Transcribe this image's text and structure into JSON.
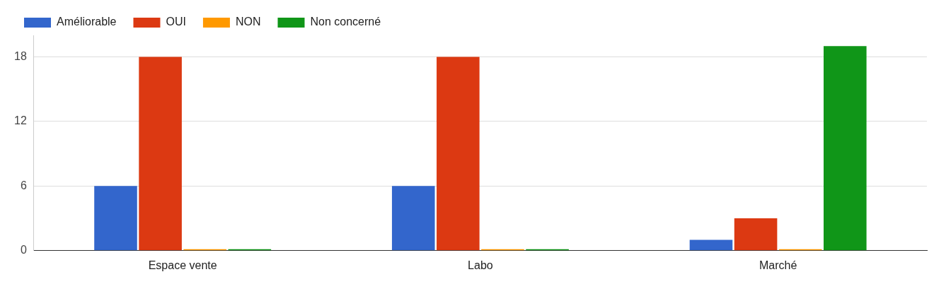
{
  "chart_data": {
    "type": "bar",
    "categories": [
      "Espace vente",
      "Labo",
      "Marché"
    ],
    "series": [
      {
        "name": "Améliorable",
        "color": "#3366cc",
        "values": [
          6,
          6,
          1
        ]
      },
      {
        "name": "OUI",
        "color": "#dc3912",
        "values": [
          18,
          18,
          3
        ]
      },
      {
        "name": "NON",
        "color": "#ff9900",
        "values": [
          0,
          0,
          0
        ]
      },
      {
        "name": "Non concerné",
        "color": "#109618",
        "values": [
          0,
          0,
          19
        ]
      }
    ],
    "ylim": [
      0,
      20
    ],
    "yticks": [
      0,
      6,
      12,
      18
    ],
    "grid": "y",
    "legend": "top left"
  }
}
